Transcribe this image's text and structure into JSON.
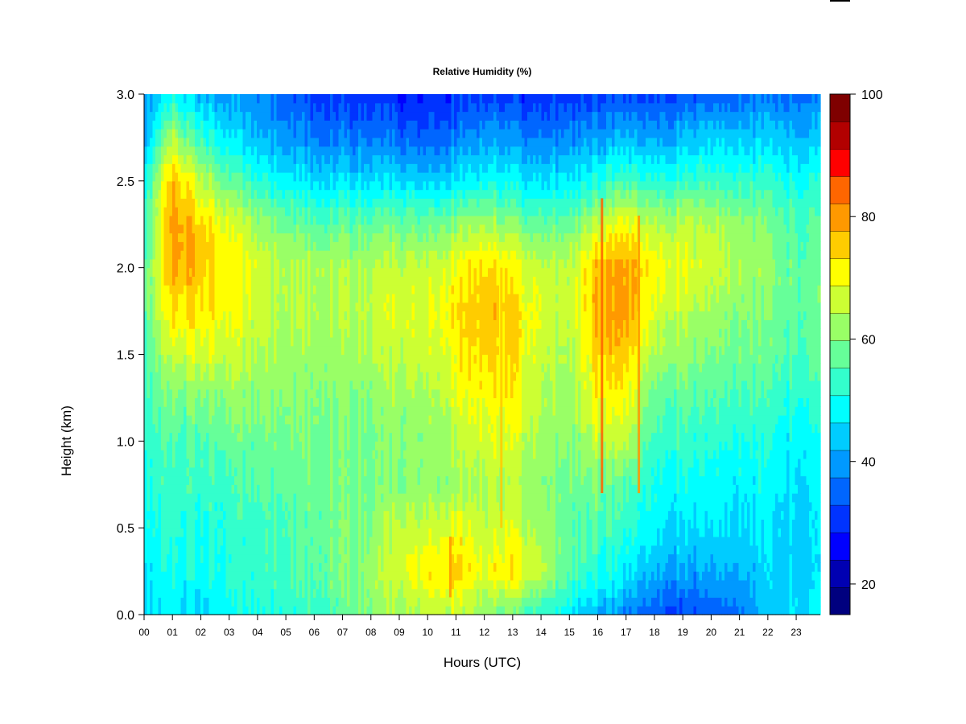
{
  "chart_data": {
    "type": "heatmap",
    "title": "Relative Humidity (%)",
    "xlabel": "Hours (UTC)",
    "ylabel": "Height (km)",
    "x_ticks": [
      "00",
      "01",
      "02",
      "03",
      "04",
      "05",
      "06",
      "07",
      "08",
      "09",
      "10",
      "11",
      "12",
      "13",
      "14",
      "15",
      "16",
      "17",
      "18",
      "19",
      "20",
      "21",
      "22",
      "23"
    ],
    "x_range_hours": [
      0,
      23.85
    ],
    "y_ticks": [
      "0.0",
      "0.5",
      "1.0",
      "1.5",
      "2.0",
      "2.5",
      "3.0"
    ],
    "y_range_km": [
      0,
      3
    ],
    "colorbar": {
      "ticks": [
        "20",
        "40",
        "60",
        "80",
        "100"
      ],
      "range": [
        15,
        100
      ],
      "step": 5,
      "colors": [
        "#00007f",
        "#0000b2",
        "#0000ff",
        "#0033ff",
        "#0066ff",
        "#0099ff",
        "#00ccff",
        "#00ffff",
        "#33ffcc",
        "#66ff99",
        "#99ff66",
        "#ccff33",
        "#ffff00",
        "#ffcc00",
        "#ff9900",
        "#ff6600",
        "#ff0000",
        "#b20000",
        "#7f0000"
      ]
    },
    "grid_hours": [
      0,
      1,
      2,
      3,
      4,
      5,
      6,
      7,
      8,
      9,
      10,
      11,
      12,
      13,
      14,
      15,
      16,
      17,
      18,
      19,
      20,
      21,
      22,
      23
    ],
    "grid_heights_km": [
      0.0,
      0.25,
      0.5,
      0.75,
      1.0,
      1.25,
      1.5,
      1.75,
      2.0,
      2.25,
      2.5,
      2.75,
      3.0
    ],
    "grid_values": [
      [
        50,
        52,
        54,
        56,
        58,
        60,
        60,
        62,
        62,
        58,
        54,
        46,
        42
      ],
      [
        50,
        54,
        56,
        58,
        60,
        64,
        72,
        80,
        86,
        88,
        84,
        70,
        52
      ],
      [
        50,
        54,
        56,
        58,
        60,
        66,
        74,
        80,
        84,
        82,
        72,
        58,
        46
      ],
      [
        52,
        56,
        56,
        58,
        62,
        66,
        72,
        76,
        78,
        74,
        62,
        50,
        42
      ],
      [
        54,
        58,
        58,
        60,
        62,
        66,
        70,
        72,
        74,
        68,
        56,
        46,
        40
      ],
      [
        56,
        60,
        60,
        62,
        64,
        66,
        68,
        70,
        70,
        64,
        52,
        42,
        38
      ],
      [
        58,
        62,
        62,
        64,
        64,
        66,
        68,
        70,
        70,
        62,
        50,
        40,
        34
      ],
      [
        62,
        64,
        64,
        64,
        64,
        66,
        68,
        70,
        70,
        62,
        50,
        40,
        32
      ],
      [
        66,
        68,
        66,
        64,
        64,
        66,
        70,
        72,
        70,
        62,
        50,
        40,
        32
      ],
      [
        68,
        74,
        72,
        66,
        66,
        68,
        72,
        74,
        72,
        64,
        50,
        38,
        30
      ],
      [
        70,
        78,
        72,
        66,
        66,
        68,
        72,
        74,
        72,
        62,
        48,
        36,
        30
      ],
      [
        72,
        82,
        76,
        68,
        70,
        74,
        78,
        80,
        76,
        66,
        50,
        40,
        32
      ],
      [
        66,
        76,
        72,
        70,
        74,
        78,
        82,
        84,
        82,
        70,
        54,
        44,
        34
      ],
      [
        62,
        80,
        74,
        70,
        74,
        78,
        80,
        80,
        78,
        66,
        52,
        42,
        32
      ],
      [
        56,
        72,
        68,
        66,
        68,
        70,
        72,
        74,
        72,
        62,
        50,
        40,
        32
      ],
      [
        50,
        60,
        62,
        62,
        64,
        66,
        68,
        70,
        70,
        62,
        50,
        40,
        32
      ],
      [
        46,
        56,
        60,
        64,
        72,
        78,
        82,
        86,
        84,
        72,
        56,
        44,
        34
      ],
      [
        40,
        50,
        56,
        60,
        70,
        76,
        82,
        86,
        86,
        76,
        58,
        44,
        34
      ],
      [
        36,
        46,
        52,
        54,
        58,
        62,
        68,
        74,
        78,
        70,
        56,
        44,
        34
      ],
      [
        34,
        44,
        50,
        54,
        58,
        62,
        68,
        72,
        76,
        72,
        58,
        46,
        36
      ],
      [
        36,
        44,
        50,
        52,
        56,
        60,
        64,
        68,
        72,
        70,
        58,
        48,
        36
      ],
      [
        40,
        46,
        50,
        52,
        56,
        60,
        64,
        66,
        70,
        68,
        58,
        48,
        38
      ],
      [
        46,
        48,
        50,
        52,
        54,
        58,
        62,
        64,
        66,
        64,
        56,
        48,
        38
      ],
      [
        50,
        48,
        48,
        50,
        52,
        56,
        60,
        62,
        62,
        60,
        54,
        46,
        38
      ]
    ],
    "vertical_spikes": [
      {
        "hour": 16.15,
        "from_km": 0.7,
        "to_km": 2.4,
        "value": 90
      },
      {
        "hour": 17.45,
        "from_km": 0.7,
        "to_km": 2.3,
        "value": 88
      },
      {
        "hour": 12.6,
        "from_km": 0.5,
        "to_km": 2.0,
        "value": 84
      },
      {
        "hour": 10.8,
        "from_km": 0.1,
        "to_km": 0.45,
        "value": 86
      }
    ]
  }
}
